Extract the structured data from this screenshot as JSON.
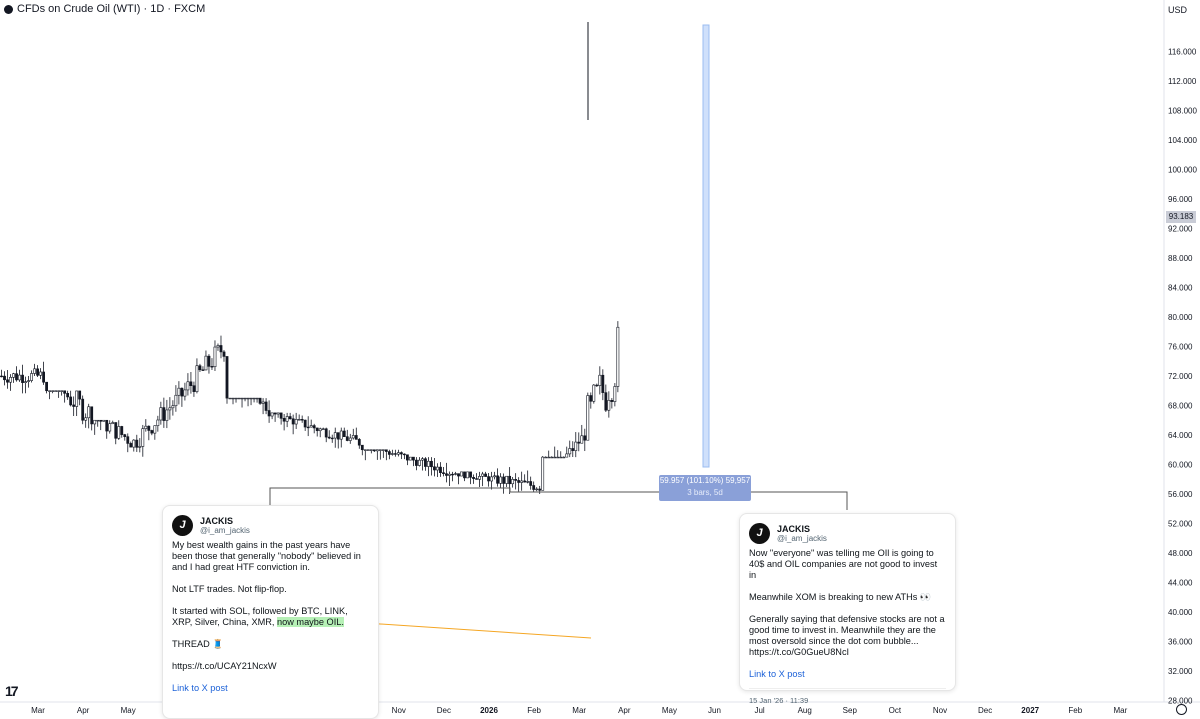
{
  "header": {
    "title": "CFDs on Crude Oil (WTI) · 1D · FXCM",
    "currency": "USD"
  },
  "price_tag": "93.183",
  "measure": {
    "line1": "59.957 (101.10%) 59,957",
    "line2": "3 bars, 5d"
  },
  "colors": {
    "candle": "#131722",
    "measure_fill": "#cfe0fb",
    "measure_box": "#8aa0d8",
    "arrow": "#f5a623",
    "highlight": "#b6f0b6",
    "link": "#1d62d8"
  },
  "icons": {
    "logo": "tradingview-logo-icon",
    "settings": "gear-icon"
  },
  "tv_logo_text": "17",
  "chart_data": {
    "type": "candlestick",
    "title": "CFDs on Crude Oil (WTI) · 1D · FXCM",
    "y_ticks": [
      "116.000",
      "112.000",
      "108.000",
      "104.000",
      "100.000",
      "96.000",
      "92.000",
      "88.000",
      "84.000",
      "80.000",
      "76.000",
      "72.000",
      "68.000",
      "64.000",
      "60.000",
      "56.000",
      "52.000",
      "48.000",
      "44.000",
      "40.000",
      "36.000",
      "32.000",
      "28.000"
    ],
    "y_tick_values": [
      116,
      112,
      108,
      104,
      100,
      96,
      92,
      88,
      84,
      80,
      76,
      72,
      68,
      64,
      60,
      56,
      52,
      48,
      44,
      40,
      36,
      32,
      28
    ],
    "x_ticks": [
      "Mar",
      "Apr",
      "May",
      "Jun",
      "Jul",
      "Aug",
      "Sep",
      "Oct",
      "Nov",
      "Dec",
      "2026",
      "Feb",
      "Mar",
      "Apr",
      "May",
      "Jun",
      "Jul",
      "Aug",
      "Sep",
      "Oct",
      "Nov",
      "Dec",
      "2027",
      "Feb",
      "Mar"
    ],
    "ylim": [
      27,
      120
    ],
    "grid": false,
    "last_price": 93.183,
    "monthly_close": [
      72,
      67,
      63,
      69,
      76,
      67,
      65,
      63,
      61,
      59,
      58,
      57,
      64,
      79,
      92
    ],
    "monthly_high": [
      74,
      70,
      66,
      72,
      78,
      69,
      67,
      65,
      62,
      61,
      59,
      62,
      68,
      102,
      101
    ],
    "monthly_low": [
      66,
      56,
      56,
      61,
      65,
      64,
      62,
      59,
      57,
      56,
      55,
      56,
      61,
      66,
      86
    ]
  },
  "tweets": [
    {
      "name": "JACKIS",
      "handle": "@i_am_jackis",
      "avatar": "J",
      "paragraphs": [
        "My best wealth gains in the past years have been those that generally \"nobody\" believed in and I had great HTF conviction in.",
        "Not LTF trades. Not flip-flop."
      ],
      "para3_pre": "It started with SOL, followed by BTC, LINK, XRP, Silver, China, XMR, ",
      "para3_hl": "now maybe OIL.",
      "thread": "THREAD 🧵",
      "url": "https://t.co/UCAY21NcxW",
      "link": "Link to X post"
    },
    {
      "name": "JACKIS",
      "handle": "@i_am_jackis",
      "avatar": "J",
      "paragraphs": [
        "Now \"everyone\" was telling me OIl is going to 40$ and OIL companies are not good to invest in",
        "Meanwhile XOM is breaking to new ATHs 👀",
        "Generally saying that defensive stocks are not a good time to invest in. Meanwhile they are the most oversold since the dot com bubble... https://t.co/G0GueU8NcI"
      ],
      "link": "Link to X post",
      "date": "15 Jan '26 · 11:39"
    }
  ]
}
